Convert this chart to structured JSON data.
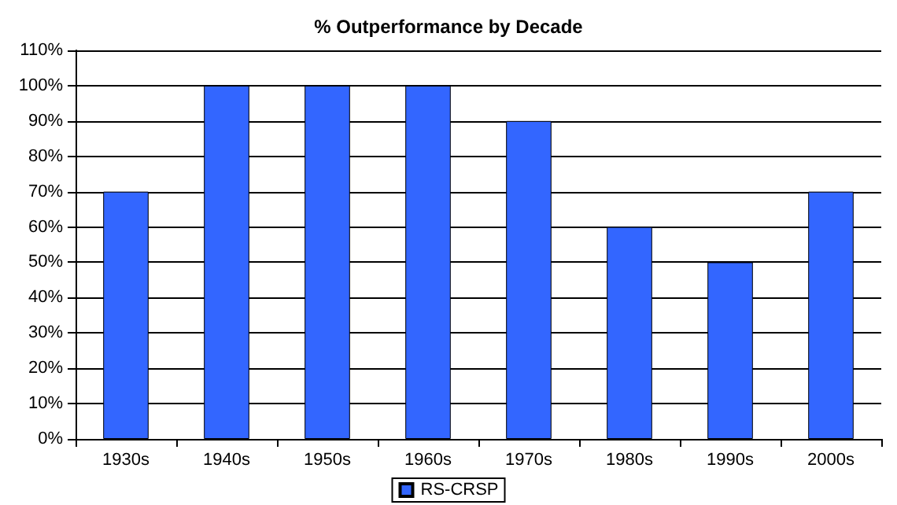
{
  "chart_data": {
    "type": "bar",
    "title": "% Outperformance by Decade",
    "categories": [
      "1930s",
      "1940s",
      "1950s",
      "1960s",
      "1970s",
      "1980s",
      "1990s",
      "2000s"
    ],
    "series": [
      {
        "name": "RS-CRSP",
        "color": "#3366ff",
        "values": [
          70,
          100,
          100,
          100,
          90,
          60,
          50,
          70
        ]
      }
    ],
    "ylim": [
      0,
      110
    ],
    "yticks": [
      {
        "value": 0,
        "label": "0%"
      },
      {
        "value": 10,
        "label": "10%"
      },
      {
        "value": 20,
        "label": "20%"
      },
      {
        "value": 30,
        "label": "30%"
      },
      {
        "value": 40,
        "label": "40%"
      },
      {
        "value": 50,
        "label": "50%"
      },
      {
        "value": 60,
        "label": "60%"
      },
      {
        "value": 70,
        "label": "70%"
      },
      {
        "value": 80,
        "label": "80%"
      },
      {
        "value": 90,
        "label": "90%"
      },
      {
        "value": 100,
        "label": "100%"
      },
      {
        "value": 110,
        "label": "110%"
      }
    ],
    "grid": "y",
    "legend": "bottom"
  }
}
